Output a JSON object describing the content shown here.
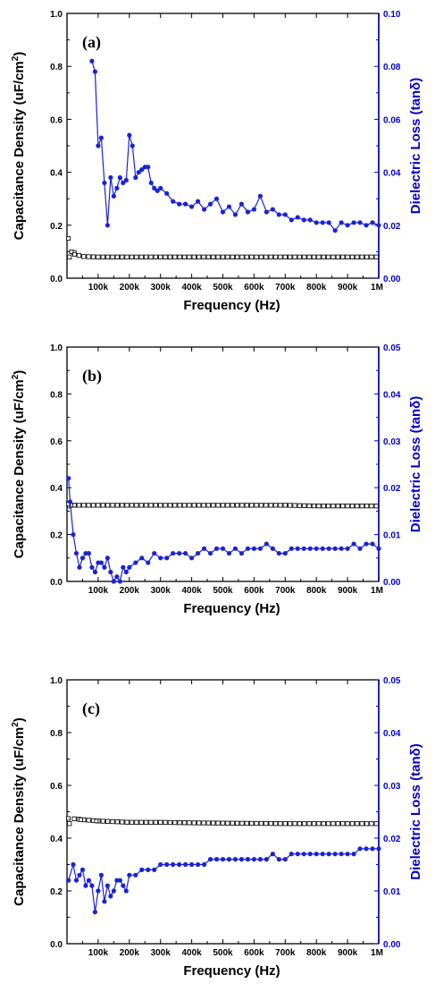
{
  "colors": {
    "capacitance": "#111111",
    "loss": "#1a22d8",
    "loss_axis": "#0000cc"
  },
  "chart_data": [
    {
      "type": "scatter",
      "panel_label": "(a)",
      "xlabel": "Frequency (Hz)",
      "ylabel_left": "Capacitance Density (uF/cm",
      "ylabel_left_sup": "2",
      "ylabel_left_end": ")",
      "ylabel_right": "Dielectric Loss (tanδ)",
      "xlim": [
        0,
        1000000
      ],
      "ylim_left": [
        0,
        1.0
      ],
      "ylim_right": [
        0,
        0.1
      ],
      "x_ticks": [
        100000,
        200000,
        300000,
        400000,
        500000,
        600000,
        700000,
        800000,
        900000,
        1000000
      ],
      "x_tick_labels": [
        "100k",
        "200k",
        "300k",
        "400k",
        "500k",
        "600k",
        "700k",
        "800k",
        "900k",
        "1M"
      ],
      "y_left_ticks": [
        0,
        0.2,
        0.4,
        0.6,
        0.8,
        1.0
      ],
      "y_left_tick_labels": [
        "0.0",
        "0.2",
        "0.4",
        "0.6",
        "0.8",
        "1.0"
      ],
      "y_right_ticks": [
        0,
        0.02,
        0.04,
        0.06,
        0.08,
        0.1
      ],
      "y_right_tick_labels": [
        "0.00",
        "0.02",
        "0.04",
        "0.06",
        "0.08",
        "0.10"
      ],
      "series": [
        {
          "axis": "left",
          "marker": "square-open",
          "x": [
            10000,
            20000,
            30000,
            40000,
            50000,
            100000,
            200000,
            300000,
            400000,
            500000,
            600000,
            700000,
            800000,
            900000,
            1000000
          ],
          "y": [
            0.15,
            0.1,
            0.09,
            0.085,
            0.082,
            0.08,
            0.08,
            0.08,
            0.08,
            0.08,
            0.08,
            0.08,
            0.08,
            0.08,
            0.08
          ]
        },
        {
          "axis": "right",
          "marker": "circle-filled",
          "x": [
            80000,
            90000,
            100000,
            110000,
            120000,
            130000,
            140000,
            150000,
            160000,
            170000,
            180000,
            190000,
            200000,
            210000,
            220000,
            230000,
            240000,
            250000,
            260000,
            270000,
            280000,
            290000,
            300000,
            320000,
            340000,
            360000,
            380000,
            400000,
            420000,
            440000,
            460000,
            480000,
            500000,
            520000,
            540000,
            560000,
            580000,
            600000,
            620000,
            640000,
            660000,
            680000,
            700000,
            720000,
            740000,
            760000,
            780000,
            800000,
            820000,
            840000,
            860000,
            880000,
            900000,
            920000,
            940000,
            960000,
            980000,
            1000000
          ],
          "y": [
            0.082,
            0.078,
            0.05,
            0.053,
            0.036,
            0.02,
            0.038,
            0.031,
            0.034,
            0.038,
            0.036,
            0.037,
            0.054,
            0.05,
            0.038,
            0.04,
            0.041,
            0.042,
            0.042,
            0.036,
            0.034,
            0.033,
            0.034,
            0.032,
            0.029,
            0.028,
            0.028,
            0.027,
            0.029,
            0.026,
            0.028,
            0.03,
            0.025,
            0.027,
            0.024,
            0.028,
            0.025,
            0.026,
            0.031,
            0.025,
            0.026,
            0.024,
            0.024,
            0.022,
            0.023,
            0.022,
            0.022,
            0.021,
            0.021,
            0.021,
            0.018,
            0.021,
            0.02,
            0.021,
            0.021,
            0.02,
            0.021,
            0.02
          ]
        }
      ]
    },
    {
      "type": "scatter",
      "panel_label": "(b)",
      "xlabel": "Frequency (Hz)",
      "ylabel_left": "Capacitance Density (uF/cm",
      "ylabel_left_sup": "2",
      "ylabel_left_end": ")",
      "ylabel_right": "Dielectric Loss (tanδ)",
      "xlim": [
        0,
        1000000
      ],
      "ylim_left": [
        0,
        1.0
      ],
      "ylim_right": [
        0,
        0.05
      ],
      "x_ticks": [
        100000,
        200000,
        300000,
        400000,
        500000,
        600000,
        700000,
        800000,
        900000,
        1000000
      ],
      "x_tick_labels": [
        "100k",
        "200k",
        "300k",
        "400k",
        "500k",
        "600k",
        "700k",
        "800k",
        "900k",
        "1M"
      ],
      "y_left_ticks": [
        0,
        0.2,
        0.4,
        0.6,
        0.8,
        1.0
      ],
      "y_left_tick_labels": [
        "0.0",
        "0.2",
        "0.4",
        "0.6",
        "0.8",
        "1.0"
      ],
      "y_right_ticks": [
        0,
        0.01,
        0.02,
        0.03,
        0.04,
        0.05
      ],
      "y_right_tick_labels": [
        "0.00",
        "0.01",
        "0.02",
        "0.03",
        "0.04",
        "0.05"
      ],
      "series": [
        {
          "axis": "left",
          "marker": "square-open",
          "x": [
            10000,
            20000,
            30000,
            40000,
            50000,
            100000,
            200000,
            300000,
            400000,
            500000,
            600000,
            700000,
            800000,
            900000,
            1000000
          ],
          "y": [
            0.33,
            0.325,
            0.325,
            0.325,
            0.325,
            0.325,
            0.325,
            0.325,
            0.325,
            0.325,
            0.325,
            0.325,
            0.322,
            0.322,
            0.322
          ],
          "dense": true
        },
        {
          "axis": "right",
          "marker": "circle-filled",
          "x": [
            5000,
            10000,
            20000,
            30000,
            40000,
            50000,
            60000,
            70000,
            80000,
            90000,
            100000,
            110000,
            120000,
            130000,
            140000,
            150000,
            160000,
            170000,
            180000,
            190000,
            200000,
            220000,
            240000,
            260000,
            280000,
            300000,
            320000,
            340000,
            360000,
            380000,
            400000,
            420000,
            440000,
            460000,
            480000,
            500000,
            520000,
            540000,
            560000,
            580000,
            600000,
            620000,
            640000,
            660000,
            680000,
            700000,
            720000,
            740000,
            760000,
            780000,
            800000,
            820000,
            840000,
            860000,
            880000,
            900000,
            920000,
            940000,
            960000,
            980000,
            1000000
          ],
          "y": [
            0.022,
            0.017,
            0.01,
            0.006,
            0.003,
            0.005,
            0.006,
            0.006,
            0.003,
            0.002,
            0.004,
            0.004,
            0.003,
            0.005,
            0.002,
            0.0,
            0.001,
            0.0,
            0.003,
            0.002,
            0.003,
            0.004,
            0.005,
            0.004,
            0.006,
            0.005,
            0.005,
            0.006,
            0.006,
            0.006,
            0.005,
            0.006,
            0.007,
            0.006,
            0.007,
            0.007,
            0.006,
            0.007,
            0.006,
            0.007,
            0.007,
            0.007,
            0.008,
            0.007,
            0.006,
            0.006,
            0.007,
            0.007,
            0.007,
            0.007,
            0.007,
            0.007,
            0.007,
            0.007,
            0.007,
            0.007,
            0.008,
            0.007,
            0.008,
            0.008,
            0.007
          ]
        }
      ]
    },
    {
      "type": "scatter",
      "panel_label": "(c)",
      "xlabel": "Frequency (Hz)",
      "ylabel_left": "Capacitance Density (uF/cm",
      "ylabel_left_sup": "2",
      "ylabel_left_end": ")",
      "ylabel_right": "Dielectric Loss (tanδ)",
      "xlim": [
        0,
        1000000
      ],
      "ylim_left": [
        0,
        1.0
      ],
      "ylim_right": [
        0,
        0.05
      ],
      "x_ticks": [
        100000,
        200000,
        300000,
        400000,
        500000,
        600000,
        700000,
        800000,
        900000,
        1000000
      ],
      "x_tick_labels": [
        "100k",
        "200k",
        "300k",
        "400k",
        "500k",
        "600k",
        "700k",
        "800k",
        "900k",
        "1M"
      ],
      "y_left_ticks": [
        0,
        0.2,
        0.4,
        0.6,
        0.8,
        1.0
      ],
      "y_left_tick_labels": [
        "0.0",
        "0.2",
        "0.4",
        "0.6",
        "0.8",
        "1.0"
      ],
      "y_right_ticks": [
        0,
        0.01,
        0.02,
        0.03,
        0.04,
        0.05
      ],
      "y_right_tick_labels": [
        "0.00",
        "0.01",
        "0.02",
        "0.03",
        "0.04",
        "0.05"
      ],
      "series": [
        {
          "axis": "left",
          "marker": "square-open",
          "x": [
            10000,
            50000,
            100000,
            200000,
            300000,
            400000,
            500000,
            600000,
            700000,
            800000,
            900000,
            1000000
          ],
          "y": [
            0.475,
            0.47,
            0.465,
            0.46,
            0.46,
            0.458,
            0.457,
            0.456,
            0.455,
            0.455,
            0.455,
            0.455
          ],
          "dense": true
        },
        {
          "axis": "right",
          "marker": "circle-filled",
          "x": [
            5000,
            20000,
            30000,
            40000,
            50000,
            60000,
            70000,
            80000,
            90000,
            100000,
            110000,
            120000,
            130000,
            140000,
            150000,
            160000,
            170000,
            180000,
            190000,
            200000,
            220000,
            240000,
            260000,
            280000,
            300000,
            320000,
            340000,
            360000,
            380000,
            400000,
            420000,
            440000,
            460000,
            480000,
            500000,
            520000,
            540000,
            560000,
            580000,
            600000,
            620000,
            640000,
            660000,
            680000,
            700000,
            720000,
            740000,
            760000,
            780000,
            800000,
            820000,
            840000,
            860000,
            880000,
            900000,
            920000,
            940000,
            960000,
            980000,
            1000000
          ],
          "y": [
            0.012,
            0.015,
            0.012,
            0.013,
            0.014,
            0.011,
            0.012,
            0.011,
            0.006,
            0.01,
            0.013,
            0.008,
            0.011,
            0.009,
            0.01,
            0.012,
            0.012,
            0.011,
            0.01,
            0.013,
            0.013,
            0.014,
            0.014,
            0.014,
            0.015,
            0.015,
            0.015,
            0.015,
            0.015,
            0.015,
            0.015,
            0.015,
            0.016,
            0.016,
            0.016,
            0.016,
            0.016,
            0.016,
            0.016,
            0.016,
            0.016,
            0.016,
            0.017,
            0.016,
            0.016,
            0.017,
            0.017,
            0.017,
            0.017,
            0.017,
            0.017,
            0.017,
            0.017,
            0.017,
            0.017,
            0.017,
            0.018,
            0.018,
            0.018,
            0.018
          ]
        }
      ]
    }
  ]
}
